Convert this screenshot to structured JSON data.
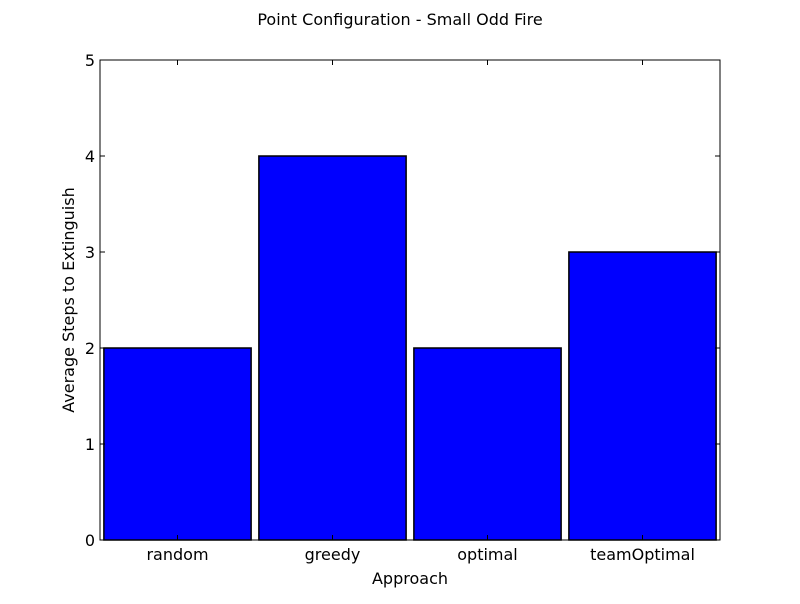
{
  "chart_data": {
    "type": "bar",
    "title": "Point Configuration - Small Odd Fire",
    "xlabel": "Approach",
    "ylabel": "Average Steps to Extinguish",
    "categories": [
      "random",
      "greedy",
      "optimal",
      "teamOptimal"
    ],
    "values": [
      2,
      4,
      2,
      3
    ],
    "ylim": [
      0,
      5
    ],
    "yticks": [
      "0",
      "1",
      "2",
      "3",
      "4",
      "5"
    ],
    "grid": false,
    "bar_color": "#0000ff",
    "edge_color": "#000000"
  }
}
